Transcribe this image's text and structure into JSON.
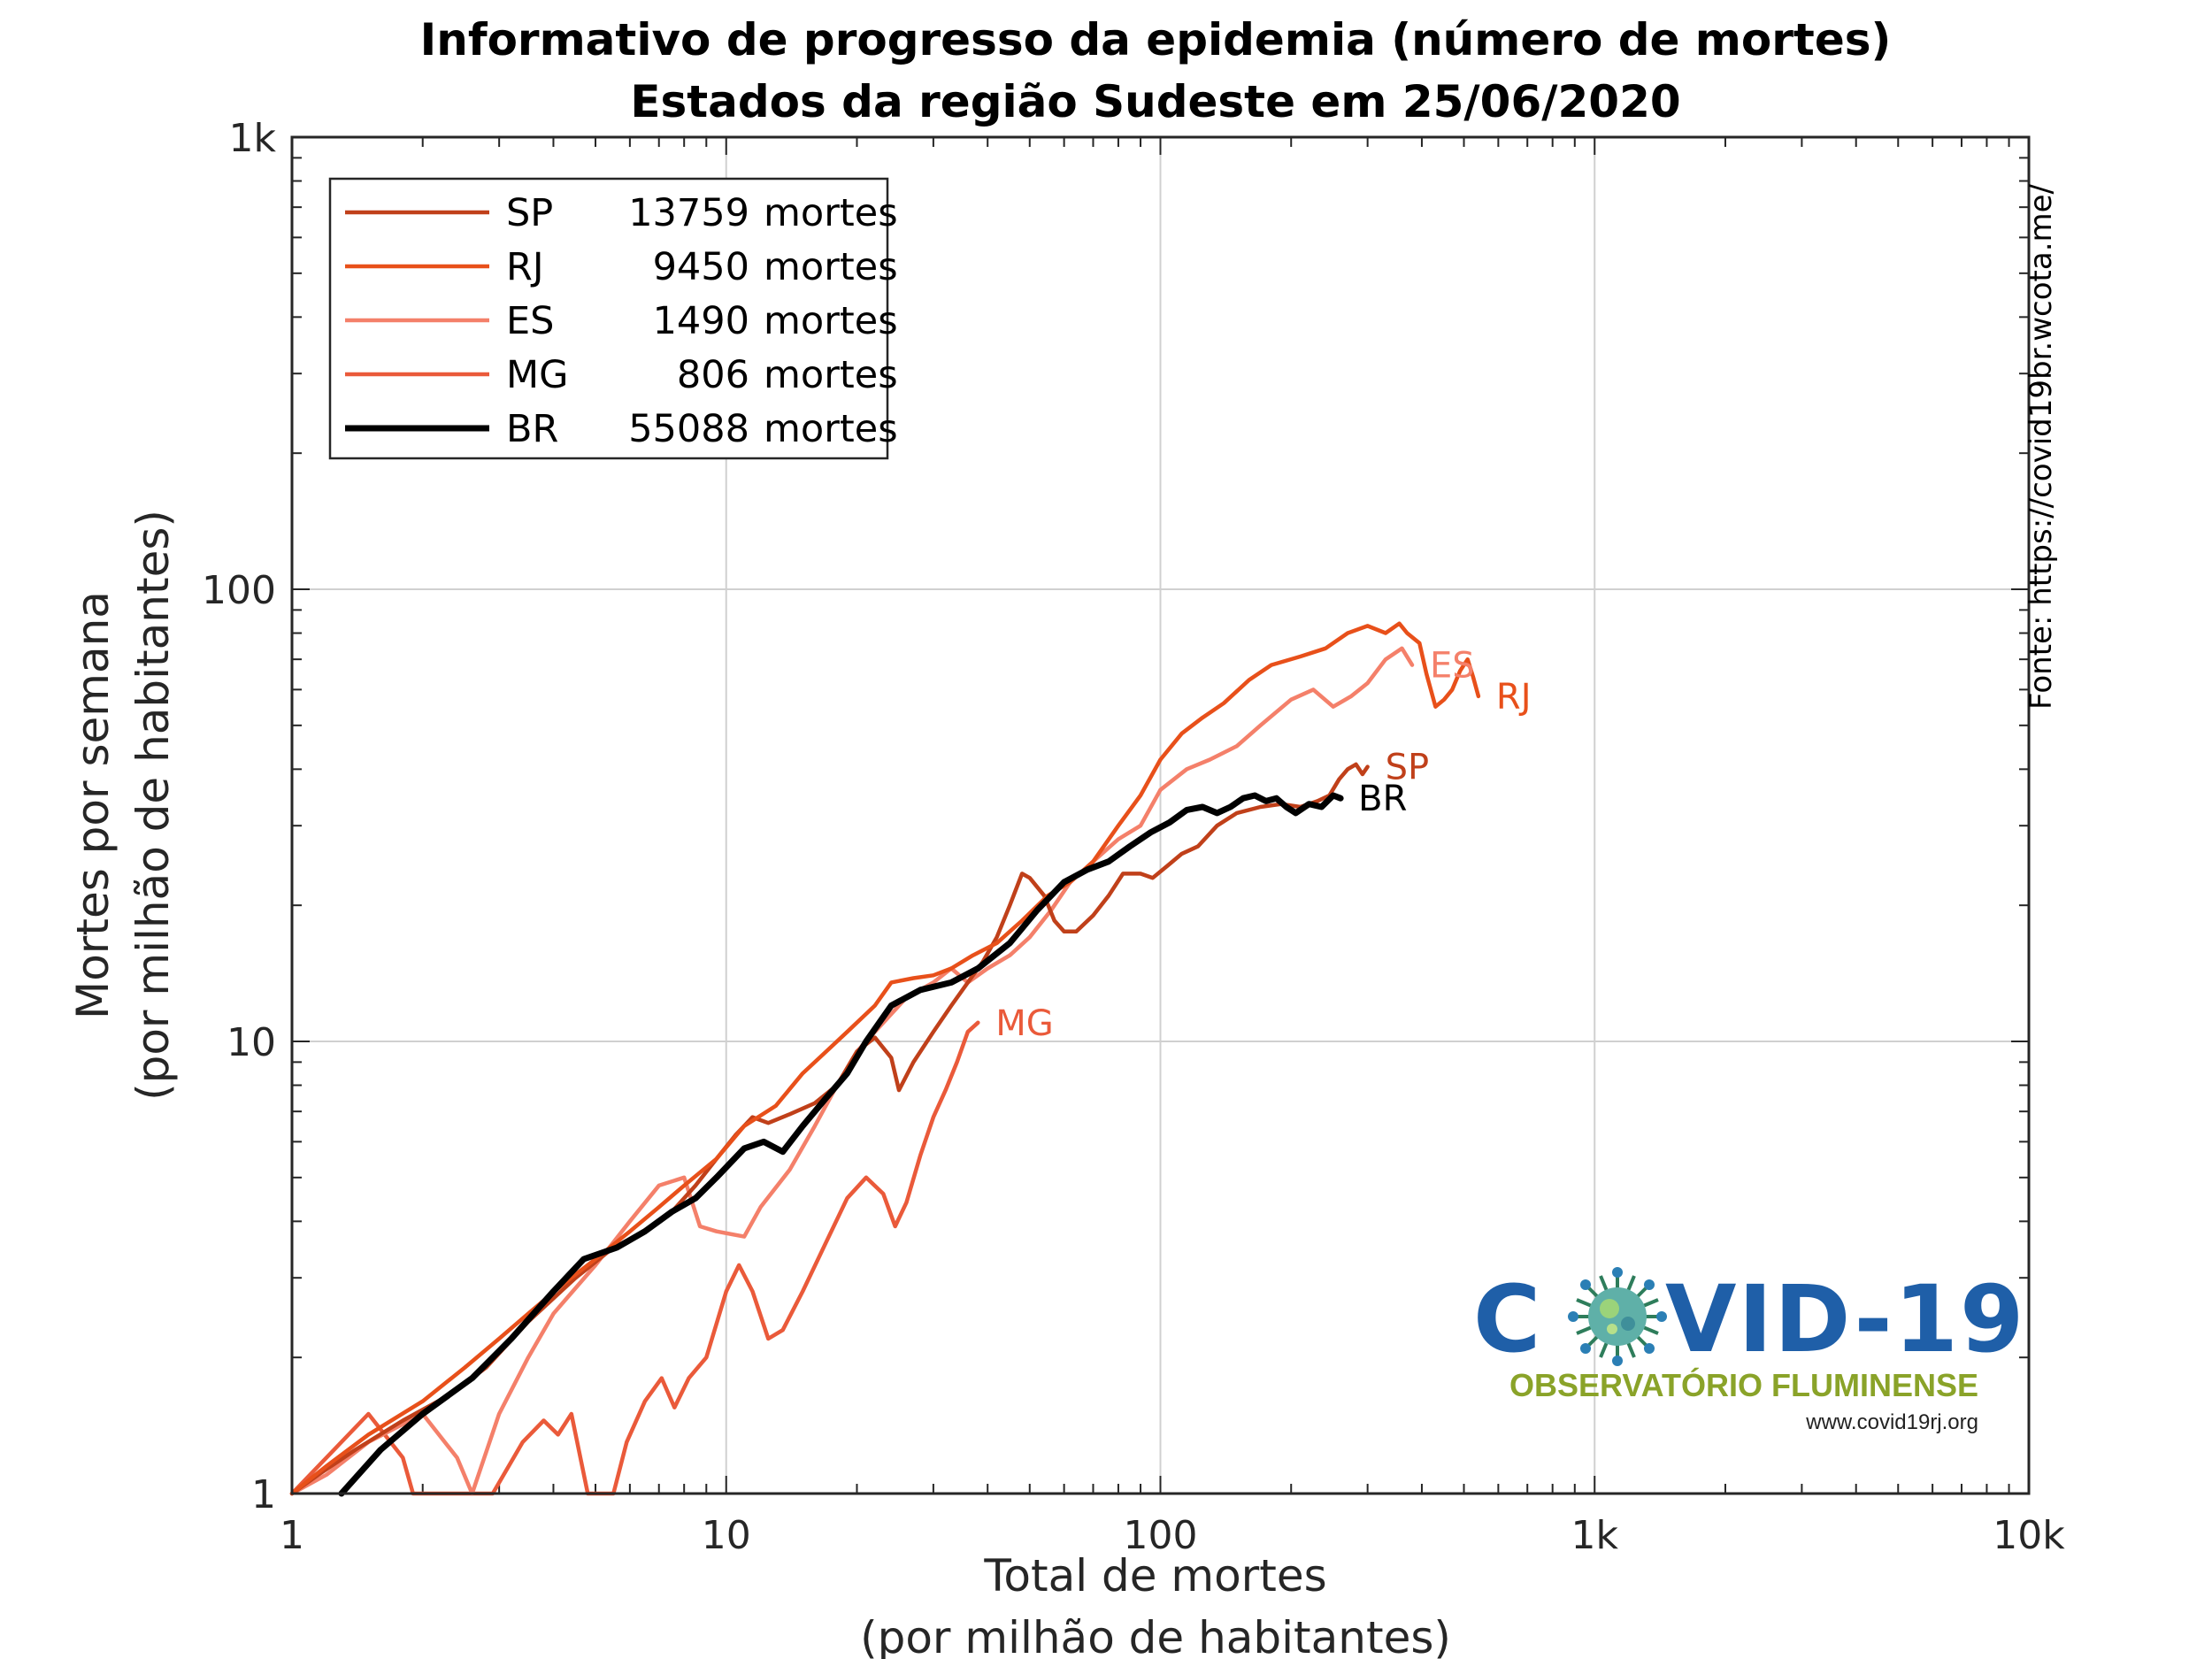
{
  "chart_data": {
    "type": "line",
    "title": "Informativo de progresso da epidemia (número de mortes)",
    "subtitle": "Estados da região Sudeste em 25/06/2020",
    "xlabel": "Total de mortes",
    "xlabel2": "(por milhão de habitantes)",
    "ylabel": "Mortes por semana",
    "ylabel2": "(por milhão de habitantes)",
    "xscale": "log",
    "yscale": "log",
    "xlim": [
      1,
      10000
    ],
    "ylim": [
      1,
      1000
    ],
    "grid": true,
    "legend_position": "top-left",
    "xticks": [
      1,
      10,
      100,
      1000,
      10000
    ],
    "xtick_labels": [
      "1",
      "10",
      "100",
      "1k",
      "10k"
    ],
    "yticks": [
      1,
      10,
      100,
      1000
    ],
    "ytick_labels": [
      "1",
      "10",
      "100",
      "1k"
    ],
    "source": "Fonte: https://covid19br.wcota.me/",
    "series": [
      {
        "name": "SP",
        "count": "13759",
        "unit": "mortes",
        "label": "SP",
        "color": "#c0401a",
        "points": [
          [
            1.0,
            1.0
          ],
          [
            1.15,
            1.1
          ],
          [
            1.4,
            1.25
          ],
          [
            1.8,
            1.45
          ],
          [
            2.3,
            1.65
          ],
          [
            2.8,
            1.9
          ],
          [
            3.5,
            2.4
          ],
          [
            4.5,
            3.0
          ],
          [
            5.5,
            3.5
          ],
          [
            6.5,
            3.8
          ],
          [
            7.5,
            4.2
          ],
          [
            8.5,
            4.8
          ],
          [
            9.5,
            5.5
          ],
          [
            10.5,
            6.2
          ],
          [
            11.5,
            6.8
          ],
          [
            12.5,
            6.6
          ],
          [
            14,
            6.9
          ],
          [
            16,
            7.3
          ],
          [
            18,
            8.0
          ],
          [
            20,
            9.5
          ],
          [
            22,
            10.2
          ],
          [
            24,
            9.2
          ],
          [
            25,
            7.8
          ],
          [
            27,
            9.0
          ],
          [
            30,
            10.5
          ],
          [
            33,
            12.0
          ],
          [
            36,
            13.5
          ],
          [
            39,
            15.0
          ],
          [
            42,
            17.0
          ],
          [
            45,
            20.0
          ],
          [
            48,
            23.5
          ],
          [
            50,
            23.0
          ],
          [
            54,
            21.0
          ],
          [
            57,
            18.5
          ],
          [
            60,
            17.5
          ],
          [
            64,
            17.5
          ],
          [
            70,
            19.0
          ],
          [
            76,
            21.0
          ],
          [
            82,
            23.5
          ],
          [
            90,
            23.5
          ],
          [
            96,
            23.0
          ],
          [
            104,
            24.5
          ],
          [
            112,
            26.0
          ],
          [
            122,
            27.0
          ],
          [
            135,
            30.0
          ],
          [
            150,
            32.0
          ],
          [
            170,
            33.0
          ],
          [
            190,
            33.5
          ],
          [
            210,
            33.0
          ],
          [
            230,
            34.0
          ],
          [
            245,
            35.0
          ],
          [
            258,
            38.0
          ],
          [
            270,
            40.0
          ],
          [
            282,
            41.0
          ],
          [
            292,
            39.0
          ],
          [
            300,
            40.5
          ]
        ]
      },
      {
        "name": "RJ",
        "count": "9450",
        "unit": "mortes",
        "label": "RJ",
        "color": "#e8501a",
        "points": [
          [
            1.0,
            1.0
          ],
          [
            1.2,
            1.15
          ],
          [
            1.5,
            1.35
          ],
          [
            2.0,
            1.6
          ],
          [
            2.5,
            1.9
          ],
          [
            3.0,
            2.2
          ],
          [
            3.5,
            2.5
          ],
          [
            4.2,
            2.9
          ],
          [
            5.0,
            3.3
          ],
          [
            6.0,
            3.8
          ],
          [
            7.0,
            4.3
          ],
          [
            8.0,
            4.8
          ],
          [
            9.5,
            5.5
          ],
          [
            11,
            6.5
          ],
          [
            13,
            7.2
          ],
          [
            15,
            8.5
          ],
          [
            17,
            9.5
          ],
          [
            19,
            10.5
          ],
          [
            22,
            12.0
          ],
          [
            24,
            13.5
          ],
          [
            27,
            13.8
          ],
          [
            30,
            14.0
          ],
          [
            33,
            14.5
          ],
          [
            37,
            15.5
          ],
          [
            42,
            16.5
          ],
          [
            48,
            18.5
          ],
          [
            55,
            21.0
          ],
          [
            62,
            22.5
          ],
          [
            70,
            25.0
          ],
          [
            80,
            30.0
          ],
          [
            90,
            35.0
          ],
          [
            100,
            42.0
          ],
          [
            112,
            48.0
          ],
          [
            125,
            52.0
          ],
          [
            140,
            56.0
          ],
          [
            160,
            63.0
          ],
          [
            180,
            68.0
          ],
          [
            210,
            71.0
          ],
          [
            240,
            74.0
          ],
          [
            270,
            80.0
          ],
          [
            300,
            83.0
          ],
          [
            330,
            80.0
          ],
          [
            355,
            84.0
          ],
          [
            370,
            80.0
          ],
          [
            395,
            76.0
          ],
          [
            410,
            65.0
          ],
          [
            430,
            55.0
          ],
          [
            450,
            57.0
          ],
          [
            470,
            60.0
          ],
          [
            490,
            66.0
          ],
          [
            510,
            70.0
          ],
          [
            525,
            64.0
          ],
          [
            540,
            58.0
          ]
        ]
      },
      {
        "name": "ES",
        "count": "1490",
        "unit": "mortes",
        "label": "ES",
        "color": "#f4806a",
        "points": [
          [
            1.0,
            1.0
          ],
          [
            1.2,
            1.1
          ],
          [
            1.5,
            1.3
          ],
          [
            2.0,
            1.5
          ],
          [
            2.4,
            1.2
          ],
          [
            2.6,
            1.0
          ],
          [
            3.0,
            1.5
          ],
          [
            3.5,
            2.0
          ],
          [
            4.0,
            2.5
          ],
          [
            5.0,
            3.2
          ],
          [
            6.0,
            4.0
          ],
          [
            7.0,
            4.8
          ],
          [
            8.0,
            5.0
          ],
          [
            8.7,
            3.9
          ],
          [
            9.5,
            3.8
          ],
          [
            11,
            3.7
          ],
          [
            12,
            4.3
          ],
          [
            14,
            5.2
          ],
          [
            16,
            6.5
          ],
          [
            18,
            8.0
          ],
          [
            20,
            9.5
          ],
          [
            23,
            11.0
          ],
          [
            26,
            12.5
          ],
          [
            30,
            13.5
          ],
          [
            33,
            14.5
          ],
          [
            36,
            13.5
          ],
          [
            40,
            14.5
          ],
          [
            45,
            15.5
          ],
          [
            50,
            17.0
          ],
          [
            56,
            19.5
          ],
          [
            62,
            22.5
          ],
          [
            70,
            25.0
          ],
          [
            80,
            28.0
          ],
          [
            90,
            30.0
          ],
          [
            100,
            36.0
          ],
          [
            115,
            40.0
          ],
          [
            130,
            42.0
          ],
          [
            150,
            45.0
          ],
          [
            170,
            50.0
          ],
          [
            200,
            57.0
          ],
          [
            225,
            60.0
          ],
          [
            250,
            55.0
          ],
          [
            275,
            58.0
          ],
          [
            300,
            62.0
          ],
          [
            330,
            70.0
          ],
          [
            360,
            74.0
          ],
          [
            380,
            68.0
          ]
        ]
      },
      {
        "name": "MG",
        "count": "806",
        "unit": "mortes",
        "label": "MG",
        "color": "#ea5a3a",
        "points": [
          [
            1.0,
            1.0
          ],
          [
            1.5,
            1.5
          ],
          [
            1.8,
            1.2
          ],
          [
            1.9,
            1.0
          ],
          [
            2.9,
            1.0
          ],
          [
            3.4,
            1.3
          ],
          [
            3.8,
            1.45
          ],
          [
            4.1,
            1.35
          ],
          [
            4.4,
            1.5
          ],
          [
            4.8,
            1.0
          ],
          [
            5.5,
            1.0
          ],
          [
            5.9,
            1.3
          ],
          [
            6.5,
            1.6
          ],
          [
            7.1,
            1.8
          ],
          [
            7.6,
            1.55
          ],
          [
            8.2,
            1.8
          ],
          [
            9.0,
            2.0
          ],
          [
            10.0,
            2.8
          ],
          [
            10.7,
            3.2
          ],
          [
            11.5,
            2.8
          ],
          [
            12.5,
            2.2
          ],
          [
            13.5,
            2.3
          ],
          [
            15,
            2.8
          ],
          [
            17,
            3.6
          ],
          [
            19,
            4.5
          ],
          [
            21,
            5.0
          ],
          [
            23,
            4.6
          ],
          [
            24.5,
            3.9
          ],
          [
            26,
            4.4
          ],
          [
            28,
            5.6
          ],
          [
            30,
            6.8
          ],
          [
            32,
            7.8
          ],
          [
            34,
            9.0
          ],
          [
            36,
            10.5
          ],
          [
            38,
            11.0
          ]
        ]
      },
      {
        "name": "BR",
        "count": "55088",
        "unit": "mortes",
        "label": "BR",
        "color": "#000000",
        "points": [
          [
            1.3,
            1.0
          ],
          [
            1.6,
            1.25
          ],
          [
            2.0,
            1.5
          ],
          [
            2.6,
            1.8
          ],
          [
            3.2,
            2.2
          ],
          [
            4.0,
            2.8
          ],
          [
            4.7,
            3.3
          ],
          [
            5.6,
            3.5
          ],
          [
            6.5,
            3.8
          ],
          [
            7.5,
            4.2
          ],
          [
            8.5,
            4.5
          ],
          [
            9.5,
            5.0
          ],
          [
            11,
            5.8
          ],
          [
            12.2,
            6.0
          ],
          [
            13.5,
            5.7
          ],
          [
            15,
            6.5
          ],
          [
            17,
            7.5
          ],
          [
            19,
            8.5
          ],
          [
            21,
            10.0
          ],
          [
            24,
            12.0
          ],
          [
            28,
            13.0
          ],
          [
            33,
            13.5
          ],
          [
            38,
            14.5
          ],
          [
            45,
            16.5
          ],
          [
            52,
            19.5
          ],
          [
            60,
            22.5
          ],
          [
            68,
            24.0
          ],
          [
            76,
            25.0
          ],
          [
            85,
            27.0
          ],
          [
            95,
            29.0
          ],
          [
            105,
            30.5
          ],
          [
            115,
            32.5
          ],
          [
            125,
            33.0
          ],
          [
            135,
            32.0
          ],
          [
            145,
            33.0
          ],
          [
            155,
            34.5
          ],
          [
            165,
            35.0
          ],
          [
            175,
            34.0
          ],
          [
            185,
            34.5
          ],
          [
            195,
            33.0
          ],
          [
            205,
            32.0
          ],
          [
            220,
            33.5
          ],
          [
            235,
            33.0
          ],
          [
            250,
            35.0
          ],
          [
            260,
            34.5
          ]
        ]
      }
    ]
  },
  "logo": {
    "main_left": "C",
    "main_right": "VID-19",
    "subtitle": "OBSERVATÓRIO FLUMINENSE",
    "url": "www.covid19rj.org"
  }
}
